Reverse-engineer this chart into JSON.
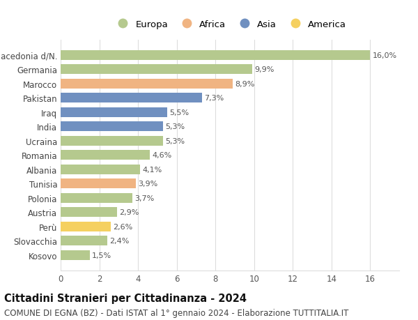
{
  "categories": [
    "Macedonia d/N.",
    "Germania",
    "Marocco",
    "Pakistan",
    "Iraq",
    "India",
    "Ucraina",
    "Romania",
    "Albania",
    "Tunisia",
    "Polonia",
    "Austria",
    "Perù",
    "Slovacchia",
    "Kosovo"
  ],
  "values": [
    16.0,
    9.9,
    8.9,
    7.3,
    5.5,
    5.3,
    5.3,
    4.6,
    4.1,
    3.9,
    3.7,
    2.9,
    2.6,
    2.4,
    1.5
  ],
  "labels": [
    "16,0%",
    "9,9%",
    "8,9%",
    "7,3%",
    "5,5%",
    "5,3%",
    "5,3%",
    "4,6%",
    "4,1%",
    "3,9%",
    "3,7%",
    "2,9%",
    "2,6%",
    "2,4%",
    "1,5%"
  ],
  "continents": [
    "Europa",
    "Europa",
    "Africa",
    "Asia",
    "Asia",
    "Asia",
    "Europa",
    "Europa",
    "Europa",
    "Africa",
    "Europa",
    "Europa",
    "America",
    "Europa",
    "Europa"
  ],
  "colors": {
    "Europa": "#b5c98e",
    "Africa": "#f0b482",
    "Asia": "#7090c0",
    "America": "#f5d060"
  },
  "legend_order": [
    "Europa",
    "Africa",
    "Asia",
    "America"
  ],
  "title": "Cittadini Stranieri per Cittadinanza - 2024",
  "subtitle": "COMUNE DI EGNA (BZ) - Dati ISTAT al 1° gennaio 2024 - Elaborazione TUTTITALIA.IT",
  "xlim": [
    0,
    17.5
  ],
  "xticks": [
    0,
    2,
    4,
    6,
    8,
    10,
    12,
    14,
    16
  ],
  "background_color": "#ffffff",
  "grid_color": "#dddddd",
  "bar_height": 0.68,
  "title_fontsize": 10.5,
  "subtitle_fontsize": 8.5,
  "label_fontsize": 8,
  "tick_fontsize": 8.5,
  "legend_fontsize": 9.5
}
